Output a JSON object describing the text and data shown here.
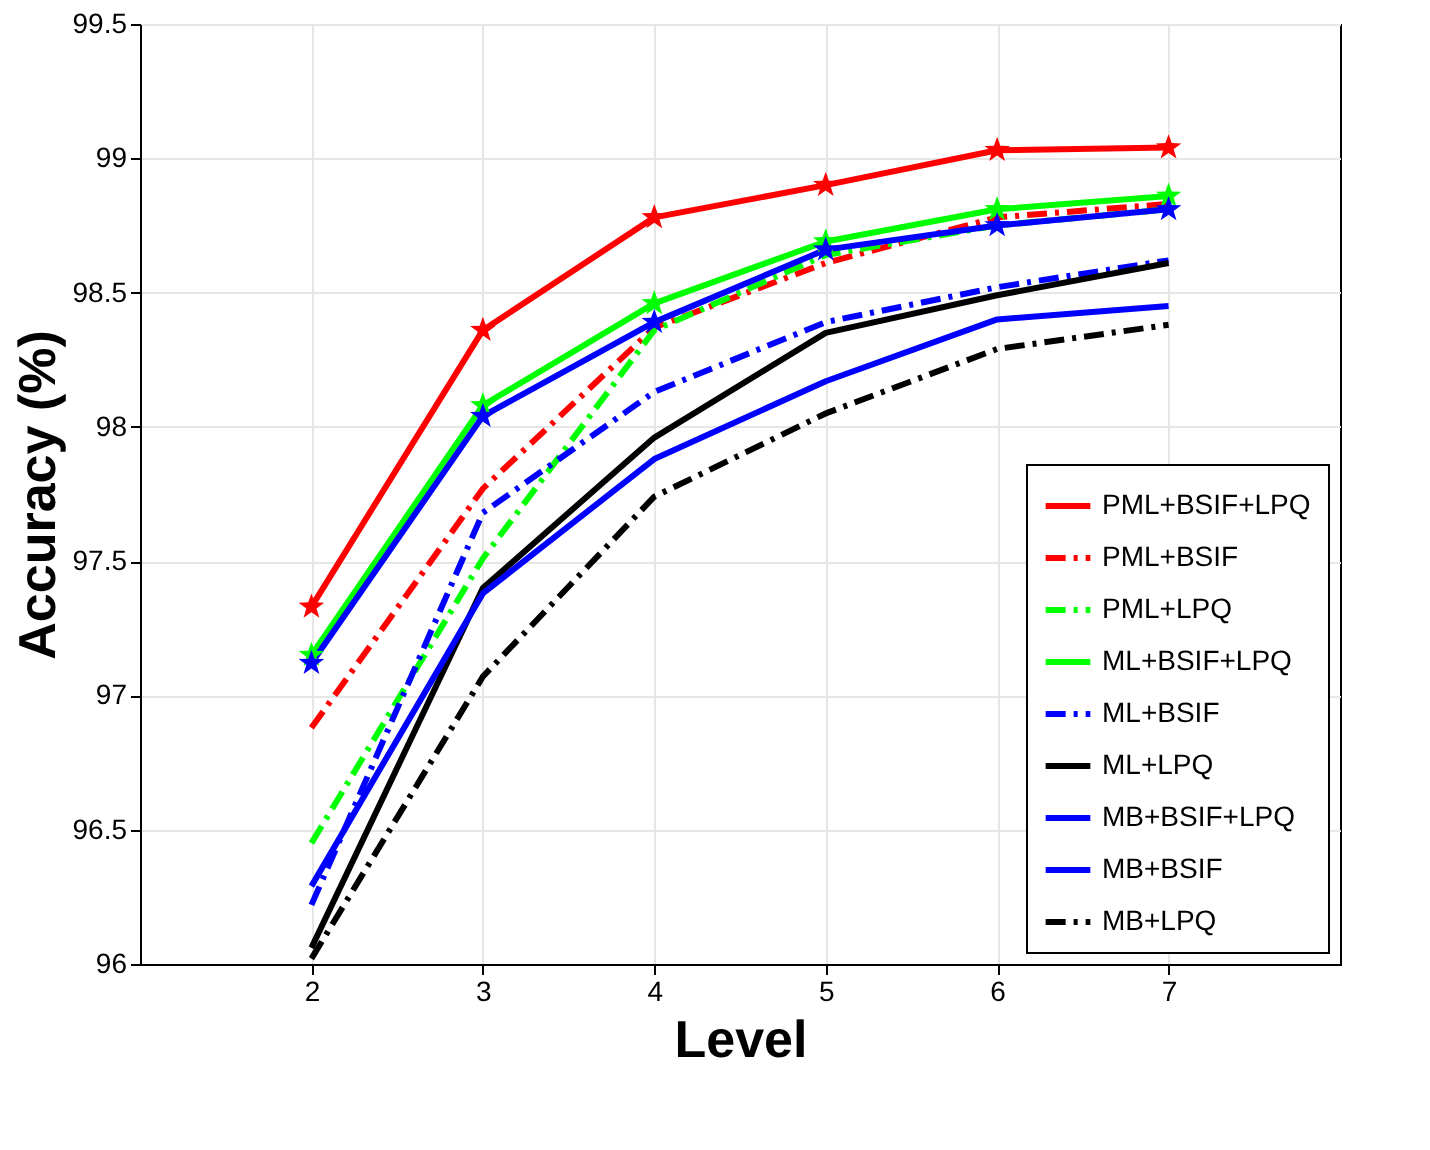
{
  "chart_data": {
    "type": "line",
    "xlabel": "Level",
    "ylabel": "Accuracy (%)",
    "x": [
      2,
      3,
      4,
      5,
      6,
      7
    ],
    "series": [
      {
        "name": "PML+BSIF+LPQ",
        "color": "#ff0000",
        "line_style": "solid",
        "marker": "star",
        "values": [
          97.33,
          98.36,
          98.78,
          98.9,
          99.03,
          99.04
        ]
      },
      {
        "name": "PML+BSIF",
        "color": "#ff0000",
        "line_style": "dashed",
        "marker": "none",
        "values": [
          96.88,
          97.77,
          98.37,
          98.61,
          98.78,
          98.83
        ]
      },
      {
        "name": "PML+LPQ",
        "color": "#00ff00",
        "line_style": "dashed",
        "marker": "none",
        "values": [
          96.45,
          97.51,
          98.36,
          98.64,
          98.75,
          98.81
        ]
      },
      {
        "name": "ML+BSIF+LPQ",
        "color": "#00ff00",
        "line_style": "solid",
        "marker": "star",
        "values": [
          97.15,
          98.08,
          98.46,
          98.69,
          98.81,
          98.86
        ]
      },
      {
        "name": "ML+BSIF",
        "color": "#0000ff",
        "line_style": "dashed",
        "marker": "none",
        "values": [
          96.22,
          97.68,
          98.13,
          98.39,
          98.52,
          98.62
        ]
      },
      {
        "name": "ML+LPQ",
        "color": "#000000",
        "line_style": "solid",
        "marker": "none",
        "values": [
          96.06,
          97.4,
          97.96,
          98.35,
          98.49,
          98.61
        ]
      },
      {
        "name": "MB+BSIF+LPQ",
        "color": "#0000ff",
        "line_style": "solid",
        "marker": "star",
        "values": [
          97.12,
          98.04,
          98.39,
          98.66,
          98.75,
          98.81
        ]
      },
      {
        "name": "MB+BSIF",
        "color": "#0000ff",
        "line_style": "solid",
        "marker": "none",
        "values": [
          96.29,
          97.38,
          97.88,
          98.17,
          98.4,
          98.45
        ]
      },
      {
        "name": "MB+LPQ",
        "color": "#000000",
        "line_style": "dashed",
        "marker": "none",
        "values": [
          96.02,
          97.07,
          97.74,
          98.05,
          98.29,
          98.38
        ]
      }
    ],
    "xlim": [
      1,
      8
    ],
    "xticks": [
      2,
      3,
      4,
      5,
      6,
      7
    ],
    "ylim": [
      96,
      99.5
    ],
    "yticks": [
      96,
      96.5,
      97,
      97.5,
      98,
      98.5,
      99,
      99.5
    ],
    "grid": true,
    "legend": "bottom right"
  }
}
